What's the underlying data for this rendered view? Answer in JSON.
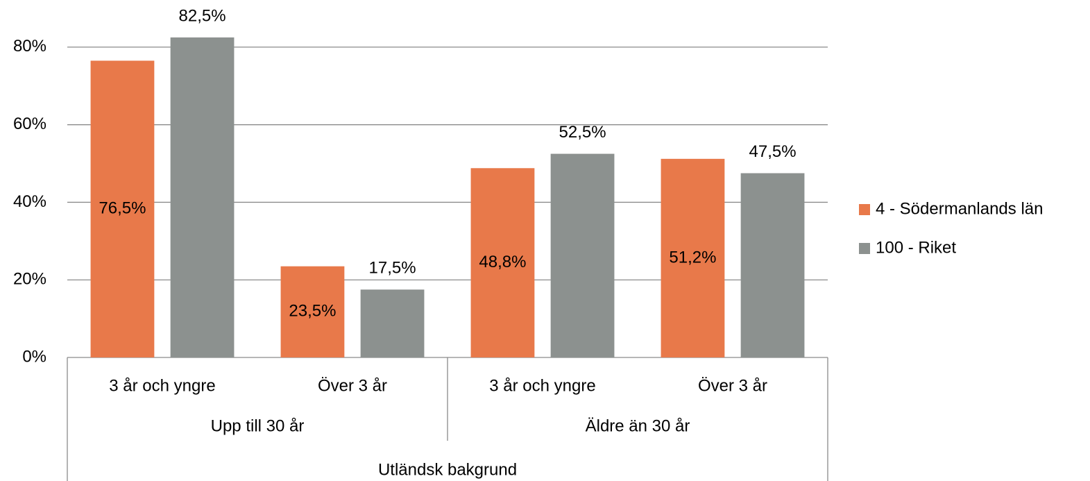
{
  "chart_data": {
    "type": "bar",
    "category_groups": [
      {
        "name": "Upp till 30 år",
        "categories": [
          "3 år och yngre",
          "Över 3 år"
        ]
      },
      {
        "name": "Äldre än 30 år",
        "categories": [
          "3 år och yngre",
          "Över 3 år"
        ]
      }
    ],
    "category_supergroup": "Utländsk bakgrund",
    "series": [
      {
        "name": "4 - Södermanlands län",
        "color": "#e8794a",
        "values": [
          76.5,
          23.5,
          48.8,
          51.2
        ],
        "value_labels": [
          "76,5%",
          "23,5%",
          "48,8%",
          "51,2%"
        ]
      },
      {
        "name": "100 - Riket",
        "color": "#8c918f",
        "values": [
          82.5,
          17.5,
          52.5,
          47.5
        ],
        "value_labels": [
          "82,5%",
          "17,5%",
          "52,5%",
          "47,5%"
        ]
      }
    ],
    "ylim": [
      0,
      90
    ],
    "yticks": [
      {
        "value": 0,
        "label": "0%"
      },
      {
        "value": 20,
        "label": "20%"
      },
      {
        "value": 40,
        "label": "40%"
      },
      {
        "value": 60,
        "label": "60%"
      },
      {
        "value": 80,
        "label": "80%"
      }
    ],
    "grid": true,
    "legend": "right"
  }
}
